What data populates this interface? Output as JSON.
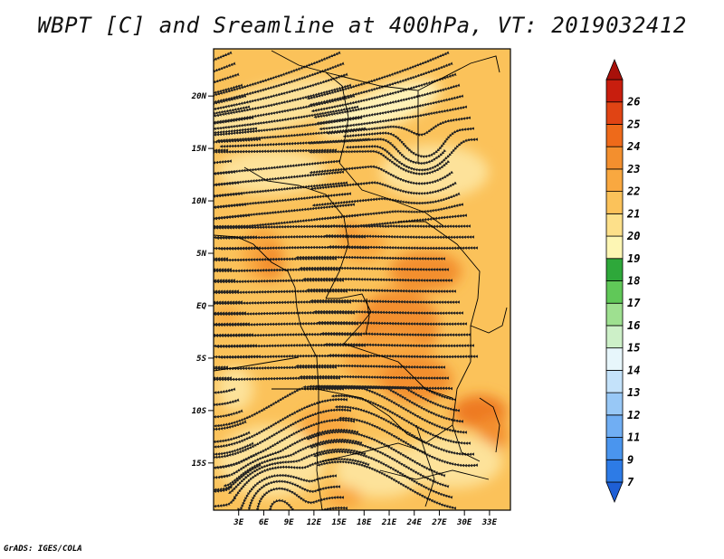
{
  "title": "WBPT [C] and Sreamline at 400hPa, VT: 2019032412",
  "credit": "GrADS: IGES/COLA",
  "map": {
    "lat_range": [
      -19.5,
      24.5
    ],
    "lon_range": [
      0,
      35.5
    ],
    "lat_ticks": [
      {
        "value": 20,
        "label": "20N"
      },
      {
        "value": 15,
        "label": "15N"
      },
      {
        "value": 10,
        "label": "10N"
      },
      {
        "value": 5,
        "label": "5N"
      },
      {
        "value": 0,
        "label": "EQ"
      },
      {
        "value": -5,
        "label": "5S"
      },
      {
        "value": -10,
        "label": "10S"
      },
      {
        "value": -15,
        "label": "15S"
      }
    ],
    "lon_ticks": [
      {
        "value": 3,
        "label": "3E"
      },
      {
        "value": 6,
        "label": "6E"
      },
      {
        "value": 9,
        "label": "9E"
      },
      {
        "value": 12,
        "label": "12E"
      },
      {
        "value": 15,
        "label": "15E"
      },
      {
        "value": 18,
        "label": "18E"
      },
      {
        "value": 21,
        "label": "21E"
      },
      {
        "value": 24,
        "label": "24E"
      },
      {
        "value": 27,
        "label": "27E"
      },
      {
        "value": 30,
        "label": "30E"
      },
      {
        "value": 33,
        "label": "33E"
      }
    ],
    "shading_colors": {
      "base": "#fbc25a",
      "light": "#fde29a",
      "pale": "#fff2b8",
      "warm": "#f9a840",
      "warmer": "#f38f2e",
      "hot": "#ee7a24"
    },
    "streamline_color": "#222222",
    "border_color": "#000000"
  },
  "colorbar": {
    "labels": [
      "7",
      "9",
      "11",
      "12",
      "13",
      "14",
      "15",
      "16",
      "17",
      "18",
      "19",
      "20",
      "21",
      "22",
      "23",
      "24",
      "25",
      "26"
    ],
    "colors": [
      "#1e5fd6",
      "#2d7be6",
      "#4a95ee",
      "#70aef3",
      "#98c8f6",
      "#c4e2fa",
      "#e7f6fb",
      "#cdf0c8",
      "#9ee090",
      "#60c858",
      "#2ea83a",
      "#fdf6b4",
      "#fde08a",
      "#fbc25a",
      "#f9a840",
      "#f38f2e",
      "#ee6a1a",
      "#e04414",
      "#c81e0e",
      "#a8100a"
    ]
  }
}
